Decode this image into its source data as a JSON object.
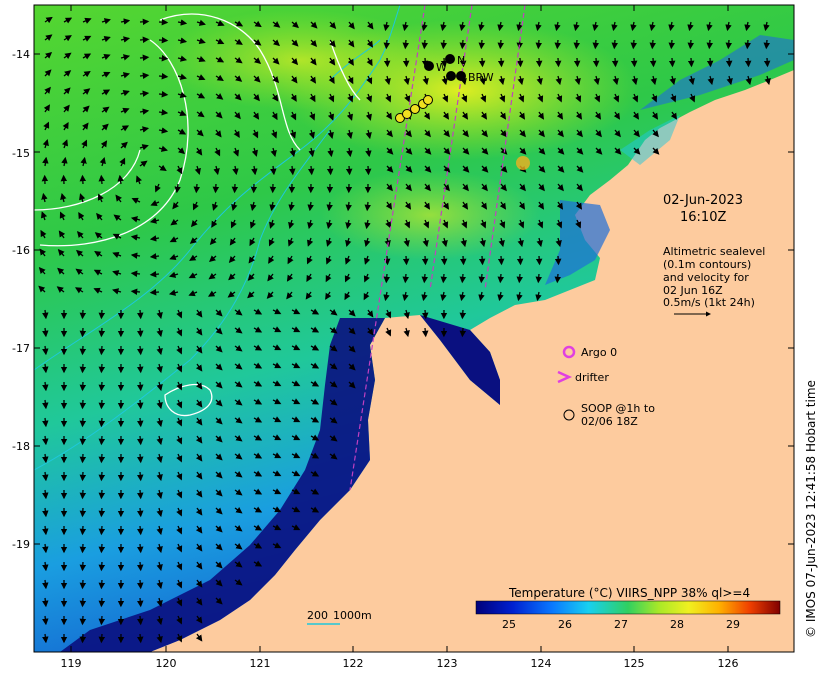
{
  "map": {
    "lon_ticks": [
      "119",
      "120",
      "121",
      "122",
      "123",
      "124",
      "125",
      "126"
    ],
    "lat_ticks": [
      "-14",
      "-15",
      "-16",
      "-17",
      "-18",
      "-19"
    ],
    "date": "02-Jun-2023",
    "time": "16:10Z",
    "altimetry_note": [
      "Altimetric sealevel",
      "(0.1m contours)",
      "and velocity for",
      "02 Jun 16Z",
      "0.5m/s (1kt 24h)"
    ],
    "legend": {
      "argo": "Argo 0",
      "drifter": "drifter",
      "soop_line1": "SOOP @1h to",
      "soop_line2": "02/06 18Z"
    },
    "stations": {
      "w": "W",
      "n": "N",
      "brw": "BRW"
    },
    "scale_bar": {
      "label_a": "200",
      "label_b": "1000m"
    },
    "colorbar": {
      "title": "Temperature (°C) VIIRS_NPP 38% ql>=4",
      "ticks": [
        "25",
        "26",
        "27",
        "28",
        "29"
      ]
    },
    "credit": "© IMOS 07-Jun-2023 12:41:58 Hobart time",
    "colors": {
      "land": "#FDCB9E",
      "deep_blue": "#0A1080",
      "mid_blue": "#1E6ED8",
      "cyan": "#1FC8DC",
      "green": "#2DC83C",
      "yellow_green": "#B4E61E",
      "magenta": "#E040E0"
    }
  }
}
